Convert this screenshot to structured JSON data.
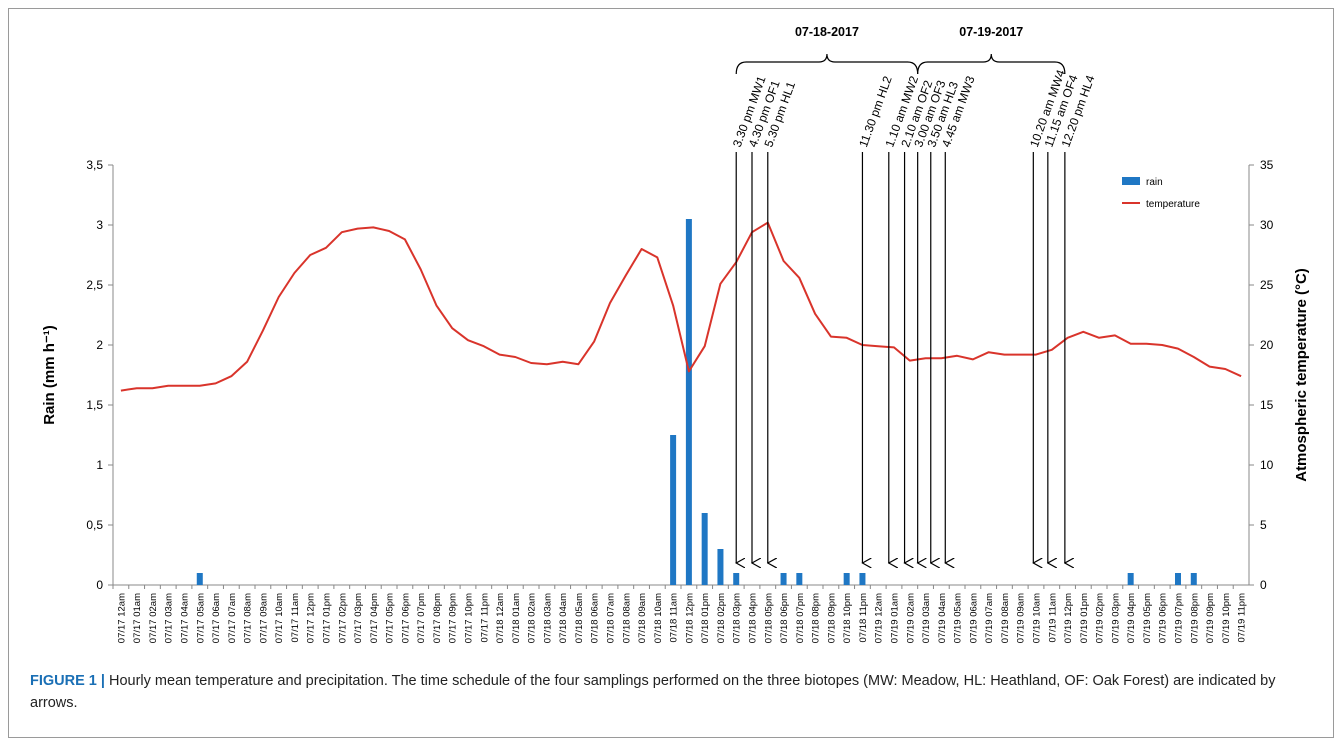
{
  "chart_data": {
    "type": "bar+line",
    "categories": [
      "07/17 12am",
      "07/17 01am",
      "07/17 02am",
      "07/17 03am",
      "07/17 04am",
      "07/17 05am",
      "07/17 06am",
      "07/17 07am",
      "07/17 08am",
      "07/17 09am",
      "07/17 10am",
      "07/17 11am",
      "07/17 12pm",
      "07/17 01pm",
      "07/17 02pm",
      "07/17 03pm",
      "07/17 04pm",
      "07/17 05pm",
      "07/17 06pm",
      "07/17 07pm",
      "07/17 08pm",
      "07/17 09pm",
      "07/17 10pm",
      "07/17 11pm",
      "07/18 12am",
      "07/18 01am",
      "07/18 02am",
      "07/18 03am",
      "07/18 04am",
      "07/18 05am",
      "07/18 06am",
      "07/18 07am",
      "07/18 08am",
      "07/18 09am",
      "07/18 10am",
      "07/18 11am",
      "07/18 12pm",
      "07/18 01pm",
      "07/18 02pm",
      "07/18 03pm",
      "07/18 04pm",
      "07/18 05pm",
      "07/18 06pm",
      "07/18 07pm",
      "07/18 08pm",
      "07/18 09pm",
      "07/18 10pm",
      "07/18 11pm",
      "07/19 12am",
      "07/19 01am",
      "07/19 02am",
      "07/19 03am",
      "07/19 04am",
      "07/19 05am",
      "07/19 06am",
      "07/19 07am",
      "07/19 08am",
      "07/19 09am",
      "07/19 10am",
      "07/19 11am",
      "07/19 12pm",
      "07/19 01pm",
      "07/19 02pm",
      "07/19 03pm",
      "07/19 04pm",
      "07/19 05pm",
      "07/19 06pm",
      "07/19 07pm",
      "07/19 08pm",
      "07/19 09pm",
      "07/19 10pm",
      "07/19 11pm"
    ],
    "series": [
      {
        "name": "rain",
        "kind": "bar",
        "axis": "left",
        "color": "#1f77c4",
        "values": [
          0,
          0,
          0,
          0,
          0,
          0.1,
          0,
          0,
          0,
          0,
          0,
          0,
          0,
          0,
          0,
          0,
          0,
          0,
          0,
          0,
          0,
          0,
          0,
          0,
          0,
          0,
          0,
          0,
          0,
          0,
          0,
          0,
          0,
          0,
          0,
          1.25,
          3.05,
          0.6,
          0.3,
          0.1,
          0,
          0,
          0.1,
          0.1,
          0,
          0,
          0.1,
          0.1,
          0,
          0,
          0,
          0,
          0,
          0,
          0,
          0,
          0,
          0,
          0,
          0,
          0,
          0,
          0,
          0,
          0.1,
          0,
          0,
          0.1,
          0.1,
          0,
          0,
          0
        ]
      },
      {
        "name": "temperature",
        "kind": "line",
        "axis": "right",
        "color": "#d9342b",
        "values": [
          16.2,
          16.4,
          16.4,
          16.6,
          16.6,
          16.6,
          16.8,
          17.4,
          18.6,
          21.2,
          24.0,
          26.0,
          27.5,
          28.1,
          29.4,
          29.7,
          29.8,
          29.5,
          28.8,
          26.3,
          23.3,
          21.4,
          20.4,
          19.9,
          19.2,
          19.0,
          18.5,
          18.4,
          18.6,
          18.4,
          20.3,
          23.5,
          25.8,
          28.0,
          27.3,
          23.3,
          17.8,
          19.9,
          25.1,
          26.9,
          29.4,
          30.2,
          27.0,
          25.6,
          22.6,
          20.7,
          20.6,
          20.0,
          19.9,
          19.8,
          18.7,
          18.9,
          18.9,
          19.1,
          18.8,
          19.4,
          19.2,
          19.2,
          19.2,
          19.6,
          20.6,
          21.1,
          20.6,
          20.8,
          20.1,
          20.1,
          20.0,
          19.7,
          19.0,
          18.2,
          18.0,
          17.4
        ]
      }
    ],
    "ylabel": "Rain (mm h⁻¹)",
    "y2label": "Atmospheric temperature (°C)",
    "ylim": [
      0,
      3.5
    ],
    "y2lim": [
      0,
      35
    ],
    "yticks": [
      "0",
      "0,5",
      "1",
      "1,5",
      "2",
      "2,5",
      "3",
      "3,5"
    ],
    "y2ticks": [
      "0",
      "5",
      "10",
      "15",
      "20",
      "25",
      "30",
      "35"
    ],
    "legend": {
      "position": "top-right",
      "items": [
        "rain",
        "temperature"
      ]
    },
    "samplings": [
      {
        "label": "3.30 pm MW1",
        "x": 39.5
      },
      {
        "label": "4.30 pm OF1",
        "x": 40.5
      },
      {
        "label": "5.30 pm HL1",
        "x": 41.5
      },
      {
        "label": "11.30 pm HL2",
        "x": 47.5
      },
      {
        "label": "1.10 am MW2",
        "x": 49.17
      },
      {
        "label": "2.10 am OF2",
        "x": 50.17
      },
      {
        "label": "3.00 am OF3",
        "x": 51
      },
      {
        "label": "3.50 am HL3",
        "x": 51.83
      },
      {
        "label": "4.45 am MW3",
        "x": 52.75
      },
      {
        "label": "10.20 am MW4",
        "x": 58.33
      },
      {
        "label": "11.15 am OF4",
        "x": 59.25
      },
      {
        "label": "12.20 pm HL4",
        "x": 60.33
      }
    ],
    "dates": [
      {
        "label": "07-18-2017",
        "from": 39.5,
        "to": 51
      },
      {
        "label": "07-19-2017",
        "from": 51,
        "to": 60.33
      }
    ]
  },
  "caption": {
    "label": "FIGURE 1 |",
    "text": "Hourly mean temperature and precipitation. The time schedule of the four samplings performed on the three biotopes (MW: Meadow, HL: Heathland, OF: Oak Forest) are indicated by arrows."
  }
}
